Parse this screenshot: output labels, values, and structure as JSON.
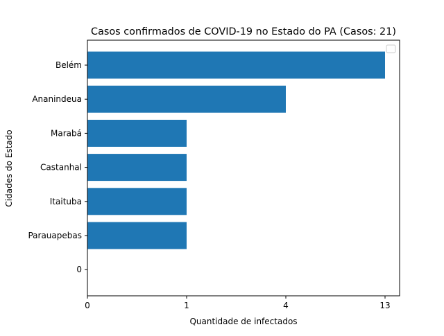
{
  "chart_data": {
    "type": "bar",
    "orientation": "horizontal",
    "title": "Casos confirmados de COVID-19 no Estado do PA (Casos: 21)",
    "xlabel": "Quantidade de infectados",
    "ylabel": "Cidades do Estado",
    "categories": [
      "Belém",
      "Ananindeua",
      "Marabá",
      "Castanhal",
      "Itaituba",
      "Parauapebas",
      "0"
    ],
    "values": [
      13,
      4,
      1,
      1,
      1,
      1,
      0
    ],
    "x_ticks": [
      "0",
      "1",
      "4",
      "13"
    ],
    "legend": {
      "placement": "top-right",
      "entries": []
    },
    "grid": false,
    "colors": {
      "bar": "#1f77b4",
      "axes": "#000000",
      "background": "#ffffff"
    }
  }
}
